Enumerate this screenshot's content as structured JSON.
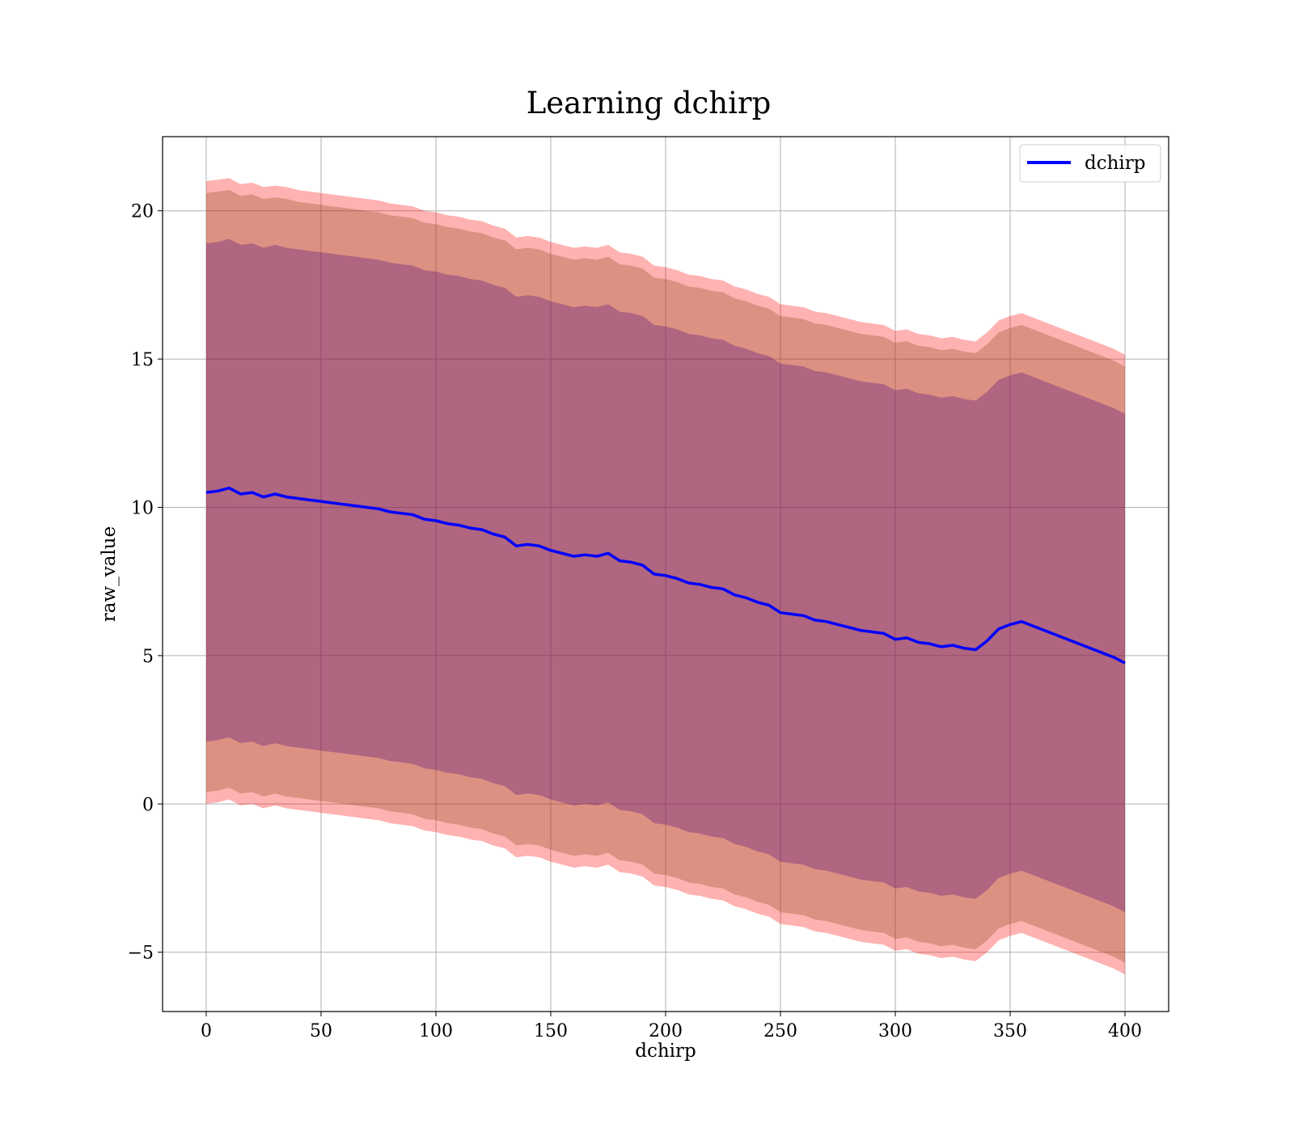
{
  "chart_data": {
    "type": "line",
    "title": "Learning dchirp",
    "xlabel": "dchirp",
    "ylabel": "raw_value",
    "xlim": [
      -19,
      419
    ],
    "ylim": [
      -7,
      22.5
    ],
    "xticks": [
      0,
      50,
      100,
      150,
      200,
      250,
      300,
      350,
      400
    ],
    "yticks": [
      -5,
      0,
      5,
      10,
      15,
      20
    ],
    "ytick_labels": [
      "−5",
      "0",
      "5",
      "10",
      "15",
      "20"
    ],
    "grid": true,
    "legend": {
      "position": "top-right"
    },
    "colors": {
      "line": "#0000ff",
      "band_outer": "#ff0000",
      "band_middle": "#8b4513",
      "band_inner": "#4b0082",
      "grid": "#b0b0b0"
    },
    "series": [
      {
        "name": "dchirp",
        "x": [
          0,
          5,
          10,
          15,
          20,
          25,
          30,
          35,
          40,
          45,
          50,
          55,
          60,
          65,
          70,
          75,
          80,
          85,
          90,
          95,
          100,
          105,
          110,
          115,
          120,
          125,
          130,
          135,
          140,
          145,
          150,
          155,
          160,
          165,
          170,
          175,
          180,
          185,
          190,
          195,
          200,
          205,
          210,
          215,
          220,
          225,
          230,
          235,
          240,
          245,
          250,
          255,
          260,
          265,
          270,
          275,
          280,
          285,
          290,
          295,
          300,
          305,
          310,
          315,
          320,
          325,
          330,
          335,
          340,
          345,
          350,
          355,
          360,
          365,
          370,
          375,
          380,
          385,
          390,
          395,
          400
        ],
        "y": [
          10.5,
          10.55,
          10.65,
          10.45,
          10.5,
          10.35,
          10.45,
          10.35,
          10.3,
          10.25,
          10.2,
          10.15,
          10.1,
          10.05,
          10.0,
          9.95,
          9.85,
          9.8,
          9.75,
          9.6,
          9.55,
          9.45,
          9.4,
          9.3,
          9.25,
          9.1,
          9.0,
          8.7,
          8.75,
          8.7,
          8.55,
          8.45,
          8.35,
          8.4,
          8.35,
          8.45,
          8.2,
          8.15,
          8.05,
          7.75,
          7.7,
          7.6,
          7.45,
          7.4,
          7.3,
          7.25,
          7.05,
          6.95,
          6.8,
          6.7,
          6.45,
          6.4,
          6.35,
          6.2,
          6.15,
          6.05,
          5.95,
          5.85,
          5.8,
          5.75,
          5.55,
          5.6,
          5.45,
          5.4,
          5.3,
          5.35,
          5.25,
          5.2,
          5.5,
          5.9,
          6.05,
          6.15,
          6.0,
          5.85,
          5.7,
          5.55,
          5.4,
          5.25,
          5.1,
          4.95,
          4.75
        ]
      }
    ],
    "bands": {
      "outer_upper": [
        21.0,
        21.05,
        21.1,
        20.9,
        20.95,
        20.8,
        20.85,
        20.8,
        20.7,
        20.65,
        20.6,
        20.55,
        20.5,
        20.45,
        20.4,
        20.35,
        20.25,
        20.2,
        20.15,
        20.0,
        19.95,
        19.85,
        19.8,
        19.7,
        19.65,
        19.5,
        19.4,
        19.1,
        19.15,
        19.1,
        18.95,
        18.85,
        18.75,
        18.8,
        18.75,
        18.85,
        18.6,
        18.55,
        18.45,
        18.15,
        18.1,
        18.0,
        17.85,
        17.8,
        17.7,
        17.65,
        17.45,
        17.35,
        17.2,
        17.1,
        16.85,
        16.8,
        16.75,
        16.6,
        16.55,
        16.45,
        16.35,
        16.25,
        16.2,
        16.15,
        15.95,
        16.0,
        15.85,
        15.8,
        15.7,
        15.75,
        15.65,
        15.6,
        15.9,
        16.3,
        16.45,
        16.55,
        16.4,
        16.25,
        16.1,
        15.95,
        15.8,
        15.65,
        15.5,
        15.35,
        15.15
      ],
      "middle_upper": [
        20.6,
        20.65,
        20.7,
        20.5,
        20.55,
        20.4,
        20.45,
        20.4,
        20.3,
        20.25,
        20.2,
        20.15,
        20.1,
        20.05,
        20.0,
        19.95,
        19.85,
        19.8,
        19.75,
        19.6,
        19.55,
        19.45,
        19.4,
        19.3,
        19.25,
        19.1,
        19.0,
        18.7,
        18.75,
        18.7,
        18.55,
        18.45,
        18.35,
        18.4,
        18.35,
        18.45,
        18.2,
        18.15,
        18.05,
        17.75,
        17.7,
        17.6,
        17.45,
        17.4,
        17.3,
        17.25,
        17.05,
        16.95,
        16.8,
        16.7,
        16.45,
        16.4,
        16.35,
        16.2,
        16.15,
        16.05,
        15.95,
        15.85,
        15.8,
        15.75,
        15.55,
        15.6,
        15.45,
        15.4,
        15.3,
        15.35,
        15.25,
        15.2,
        15.5,
        15.9,
        16.05,
        16.15,
        16.0,
        15.85,
        15.7,
        15.55,
        15.4,
        15.25,
        15.1,
        14.95,
        14.75
      ],
      "inner_upper": [
        18.9,
        18.95,
        19.05,
        18.85,
        18.9,
        18.75,
        18.85,
        18.75,
        18.7,
        18.65,
        18.6,
        18.55,
        18.5,
        18.45,
        18.4,
        18.35,
        18.25,
        18.2,
        18.15,
        18.0,
        17.95,
        17.85,
        17.8,
        17.7,
        17.65,
        17.5,
        17.4,
        17.1,
        17.15,
        17.1,
        16.95,
        16.85,
        16.75,
        16.8,
        16.75,
        16.85,
        16.6,
        16.55,
        16.45,
        16.15,
        16.1,
        16.0,
        15.85,
        15.8,
        15.7,
        15.65,
        15.45,
        15.35,
        15.2,
        15.1,
        14.85,
        14.8,
        14.75,
        14.6,
        14.55,
        14.45,
        14.35,
        14.25,
        14.2,
        14.15,
        13.95,
        14.0,
        13.85,
        13.8,
        13.7,
        13.75,
        13.65,
        13.6,
        13.9,
        14.3,
        14.45,
        14.55,
        14.4,
        14.25,
        14.1,
        13.95,
        13.8,
        13.65,
        13.5,
        13.35,
        13.15
      ],
      "inner_lower": [
        2.1,
        2.15,
        2.25,
        2.05,
        2.1,
        1.95,
        2.05,
        1.95,
        1.9,
        1.85,
        1.8,
        1.75,
        1.7,
        1.65,
        1.6,
        1.55,
        1.45,
        1.4,
        1.35,
        1.2,
        1.15,
        1.05,
        1.0,
        0.9,
        0.85,
        0.7,
        0.6,
        0.3,
        0.35,
        0.3,
        0.15,
        0.05,
        -0.05,
        0.0,
        -0.05,
        0.05,
        -0.2,
        -0.25,
        -0.35,
        -0.65,
        -0.7,
        -0.8,
        -0.95,
        -1.0,
        -1.1,
        -1.15,
        -1.35,
        -1.45,
        -1.6,
        -1.7,
        -1.95,
        -2.0,
        -2.05,
        -2.2,
        -2.25,
        -2.35,
        -2.45,
        -2.55,
        -2.6,
        -2.65,
        -2.85,
        -2.8,
        -2.95,
        -3.0,
        -3.1,
        -3.05,
        -3.15,
        -3.2,
        -2.9,
        -2.5,
        -2.35,
        -2.25,
        -2.4,
        -2.55,
        -2.7,
        -2.85,
        -3.0,
        -3.15,
        -3.3,
        -3.45,
        -3.65
      ],
      "middle_lower": [
        0.4,
        0.45,
        0.55,
        0.35,
        0.4,
        0.25,
        0.35,
        0.25,
        0.2,
        0.15,
        0.1,
        0.05,
        0.0,
        -0.05,
        -0.1,
        -0.15,
        -0.25,
        -0.3,
        -0.35,
        -0.5,
        -0.55,
        -0.65,
        -0.7,
        -0.8,
        -0.85,
        -1.0,
        -1.1,
        -1.4,
        -1.35,
        -1.4,
        -1.55,
        -1.65,
        -1.75,
        -1.7,
        -1.75,
        -1.65,
        -1.9,
        -1.95,
        -2.05,
        -2.35,
        -2.4,
        -2.5,
        -2.65,
        -2.7,
        -2.8,
        -2.85,
        -3.05,
        -3.15,
        -3.3,
        -3.4,
        -3.65,
        -3.7,
        -3.75,
        -3.9,
        -3.95,
        -4.05,
        -4.15,
        -4.25,
        -4.3,
        -4.35,
        -4.55,
        -4.5,
        -4.65,
        -4.7,
        -4.8,
        -4.75,
        -4.85,
        -4.9,
        -4.6,
        -4.2,
        -4.05,
        -3.95,
        -4.1,
        -4.25,
        -4.4,
        -4.55,
        -4.7,
        -4.85,
        -5.0,
        -5.15,
        -5.35
      ],
      "outer_lower": [
        0.0,
        0.05,
        0.15,
        -0.05,
        0.0,
        -0.15,
        -0.05,
        -0.15,
        -0.2,
        -0.25,
        -0.3,
        -0.35,
        -0.4,
        -0.45,
        -0.5,
        -0.55,
        -0.65,
        -0.7,
        -0.75,
        -0.9,
        -0.95,
        -1.05,
        -1.1,
        -1.2,
        -1.25,
        -1.4,
        -1.5,
        -1.8,
        -1.75,
        -1.8,
        -1.95,
        -2.05,
        -2.15,
        -2.1,
        -2.15,
        -2.05,
        -2.3,
        -2.35,
        -2.45,
        -2.75,
        -2.8,
        -2.9,
        -3.05,
        -3.1,
        -3.2,
        -3.25,
        -3.45,
        -3.55,
        -3.7,
        -3.8,
        -4.05,
        -4.1,
        -4.15,
        -4.3,
        -4.35,
        -4.45,
        -4.55,
        -4.65,
        -4.7,
        -4.75,
        -4.95,
        -4.9,
        -5.05,
        -5.1,
        -5.2,
        -5.15,
        -5.25,
        -5.3,
        -5.0,
        -4.6,
        -4.45,
        -4.35,
        -4.5,
        -4.65,
        -4.8,
        -4.95,
        -5.1,
        -5.25,
        -5.4,
        -5.55,
        -5.75
      ]
    }
  }
}
